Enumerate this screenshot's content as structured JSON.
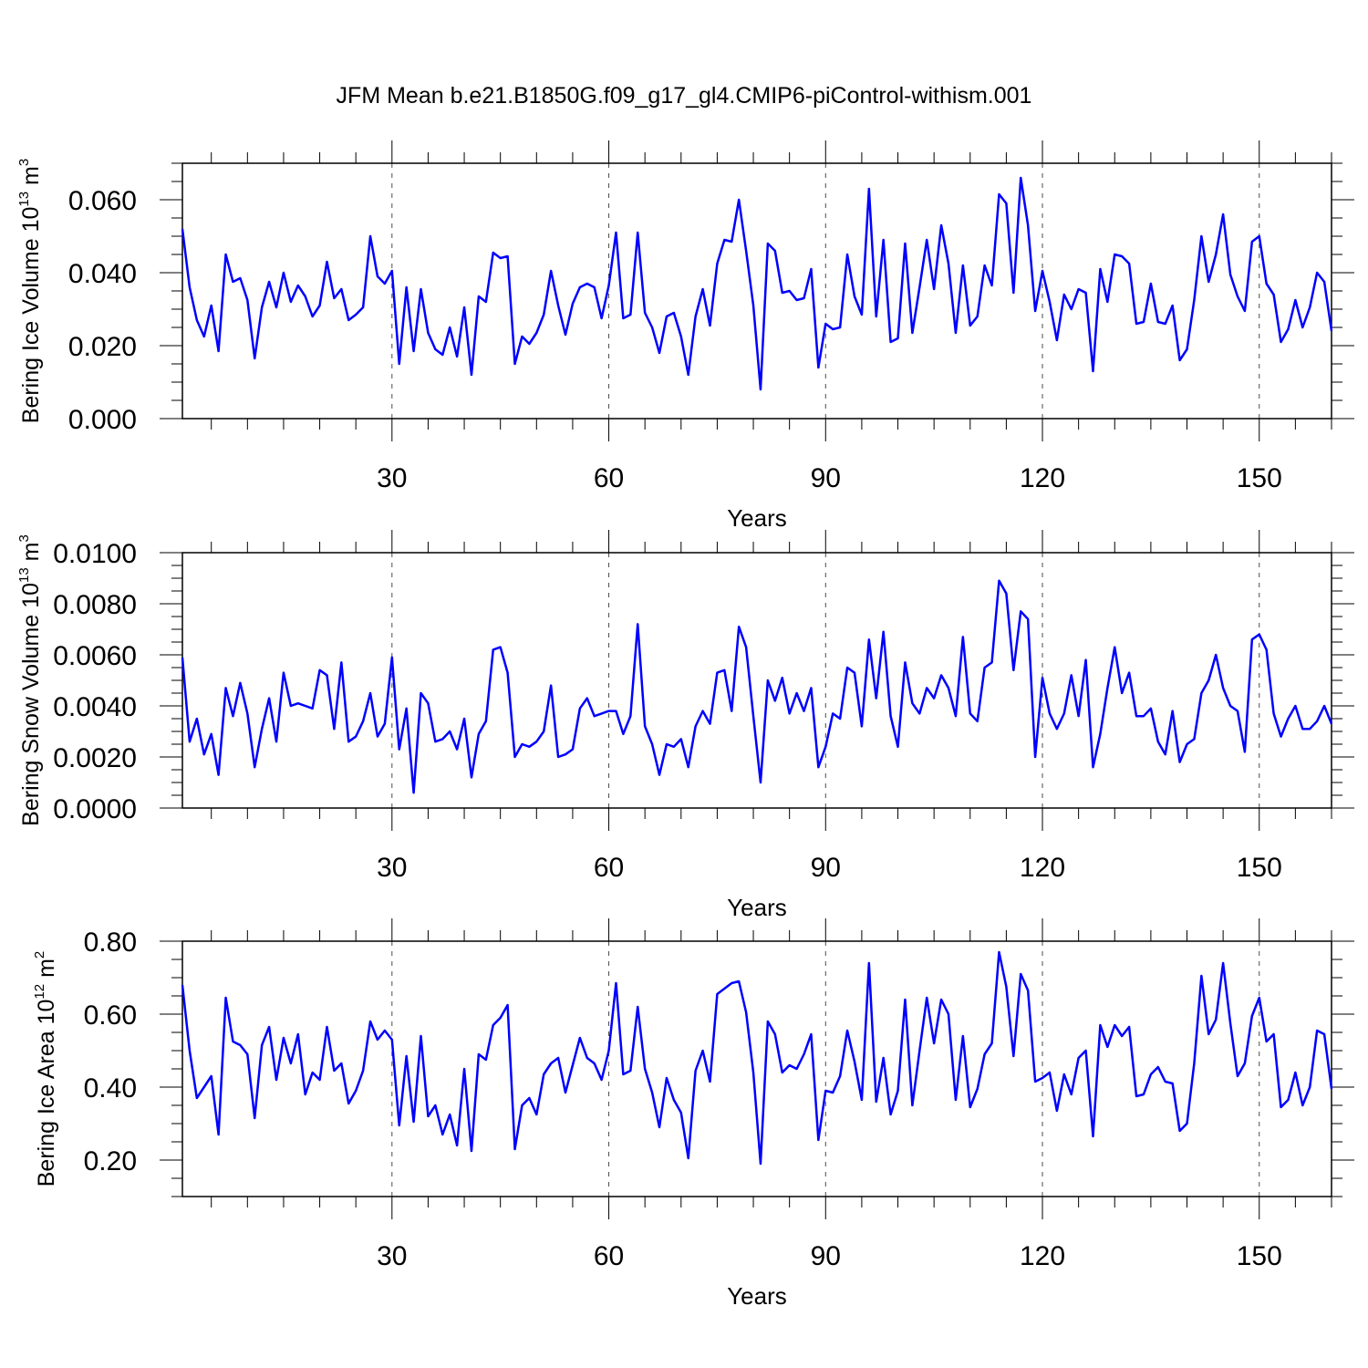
{
  "title": "JFM Mean b.e21.B1850G.f09_g17_gl4.CMIP6-piControl-withism.001",
  "chart_data": [
    {
      "type": "line",
      "title": "JFM Mean b.e21.B1850G.f09_g17_gl4.CMIP6-piControl-withism.001",
      "xlabel": "Years",
      "ylabel": {
        "text": "Bering Ice Volume 10",
        "exp": "13",
        "unit": " m",
        "unit_exp": "3"
      },
      "xlim": [
        1,
        160
      ],
      "ylim": [
        0.0,
        0.07
      ],
      "xticks": [
        30,
        60,
        90,
        120,
        150
      ],
      "xtick_labels": [
        "30",
        "60",
        "90",
        "120",
        "150"
      ],
      "yticks": [
        0.0,
        0.02,
        0.04,
        0.06
      ],
      "ytick_labels": [
        "0.000",
        "0.020",
        "0.040",
        "0.060"
      ],
      "yminor": 0.005,
      "line_color": "#0000ff",
      "grid": "dashed vertical at major x ticks",
      "series": [
        {
          "name": "Bering Ice Volume",
          "values": [
            0.052,
            0.036,
            0.027,
            0.0225,
            0.031,
            0.0185,
            0.045,
            0.0375,
            0.0385,
            0.0325,
            0.0165,
            0.0305,
            0.0375,
            0.0305,
            0.04,
            0.032,
            0.0365,
            0.0335,
            0.028,
            0.031,
            0.043,
            0.033,
            0.0355,
            0.027,
            0.0285,
            0.0305,
            0.05,
            0.039,
            0.037,
            0.0405,
            0.015,
            0.036,
            0.0185,
            0.0355,
            0.0235,
            0.019,
            0.0175,
            0.025,
            0.017,
            0.0305,
            0.012,
            0.0335,
            0.032,
            0.0455,
            0.044,
            0.0445,
            0.015,
            0.0225,
            0.0205,
            0.0235,
            0.0285,
            0.0405,
            0.031,
            0.023,
            0.0315,
            0.036,
            0.037,
            0.036,
            0.0275,
            0.0365,
            0.051,
            0.0275,
            0.0285,
            0.051,
            0.029,
            0.025,
            0.018,
            0.028,
            0.029,
            0.0225,
            0.012,
            0.028,
            0.0355,
            0.0255,
            0.0425,
            0.049,
            0.0485,
            0.06,
            0.046,
            0.031,
            0.008,
            0.048,
            0.046,
            0.0345,
            0.035,
            0.0325,
            0.033,
            0.041,
            0.014,
            0.026,
            0.0245,
            0.025,
            0.045,
            0.0335,
            0.0285,
            0.063,
            0.028,
            0.049,
            0.021,
            0.022,
            0.048,
            0.0235,
            0.036,
            0.049,
            0.0355,
            0.053,
            0.0425,
            0.0235,
            0.042,
            0.0255,
            0.028,
            0.042,
            0.0365,
            0.0615,
            0.059,
            0.0345,
            0.066,
            0.053,
            0.0295,
            0.0405,
            0.032,
            0.0215,
            0.034,
            0.03,
            0.0355,
            0.0345,
            0.013,
            0.041,
            0.032,
            0.045,
            0.0445,
            0.0425,
            0.026,
            0.0265,
            0.037,
            0.0265,
            0.026,
            0.031,
            0.016,
            0.019,
            0.0325,
            0.05,
            0.0375,
            0.045,
            0.056,
            0.0395,
            0.0335,
            0.0295,
            0.0485,
            0.05,
            0.037,
            0.034,
            0.021,
            0.0245,
            0.0325,
            0.025,
            0.0305,
            0.04,
            0.0375,
            0.024
          ]
        }
      ]
    },
    {
      "type": "line",
      "xlabel": "Years",
      "ylabel": {
        "text": "Bering Snow Volume 10",
        "exp": "13",
        "unit": " m",
        "unit_exp": "3"
      },
      "xlim": [
        1,
        160
      ],
      "ylim": [
        0.0,
        0.01
      ],
      "xticks": [
        30,
        60,
        90,
        120,
        150
      ],
      "xtick_labels": [
        "30",
        "60",
        "90",
        "120",
        "150"
      ],
      "yticks": [
        0.0,
        0.002,
        0.004,
        0.006,
        0.008,
        0.01
      ],
      "ytick_labels": [
        "0.0000",
        "0.0020",
        "0.0040",
        "0.0060",
        "0.0080",
        "0.0100"
      ],
      "yminor": 0.0005,
      "line_color": "#0000ff",
      "grid": "dashed vertical at major x ticks",
      "series": [
        {
          "name": "Bering Snow Volume",
          "values": [
            0.0059,
            0.0026,
            0.0035,
            0.0021,
            0.0029,
            0.0013,
            0.0047,
            0.0036,
            0.0049,
            0.0037,
            0.0016,
            0.0031,
            0.0043,
            0.0026,
            0.0053,
            0.004,
            0.0041,
            0.004,
            0.0039,
            0.0054,
            0.0052,
            0.0031,
            0.0057,
            0.0026,
            0.0028,
            0.0034,
            0.0045,
            0.0028,
            0.0033,
            0.0059,
            0.0023,
            0.0039,
            0.0006,
            0.0045,
            0.0041,
            0.0026,
            0.0027,
            0.003,
            0.0023,
            0.0035,
            0.0012,
            0.0029,
            0.0034,
            0.0062,
            0.0063,
            0.0053,
            0.002,
            0.0025,
            0.0024,
            0.0026,
            0.003,
            0.0048,
            0.002,
            0.0021,
            0.0023,
            0.0039,
            0.0043,
            0.0036,
            0.0037,
            0.0038,
            0.0038,
            0.0029,
            0.0036,
            0.0072,
            0.0032,
            0.0025,
            0.0013,
            0.0025,
            0.0024,
            0.0027,
            0.0016,
            0.0032,
            0.0038,
            0.0033,
            0.0053,
            0.0054,
            0.0038,
            0.0071,
            0.0063,
            0.0036,
            0.001,
            0.005,
            0.0042,
            0.0051,
            0.0037,
            0.0045,
            0.0038,
            0.0047,
            0.0016,
            0.0024,
            0.0037,
            0.0035,
            0.0055,
            0.0053,
            0.0032,
            0.0066,
            0.0043,
            0.0069,
            0.0036,
            0.0024,
            0.0057,
            0.0041,
            0.0037,
            0.0047,
            0.0043,
            0.0052,
            0.0047,
            0.0036,
            0.0067,
            0.0037,
            0.0034,
            0.0055,
            0.0057,
            0.0089,
            0.0084,
            0.0054,
            0.0077,
            0.0074,
            0.002,
            0.0051,
            0.0037,
            0.0031,
            0.0037,
            0.0052,
            0.0036,
            0.0058,
            0.0016,
            0.0029,
            0.0047,
            0.0063,
            0.0045,
            0.0053,
            0.0036,
            0.0036,
            0.0039,
            0.0026,
            0.0021,
            0.0038,
            0.0018,
            0.0025,
            0.0027,
            0.0045,
            0.005,
            0.006,
            0.0047,
            0.004,
            0.0038,
            0.0022,
            0.0066,
            0.0068,
            0.0062,
            0.0037,
            0.0028,
            0.0035,
            0.004,
            0.0031,
            0.0031,
            0.0034,
            0.004,
            0.0033
          ]
        }
      ]
    },
    {
      "type": "line",
      "xlabel": "Years",
      "ylabel": {
        "text": "Bering Ice Area 10",
        "exp": "12",
        "unit": " m",
        "unit_exp": "2"
      },
      "xlim": [
        1,
        160
      ],
      "ylim": [
        0.1,
        0.8
      ],
      "xticks": [
        30,
        60,
        90,
        120,
        150
      ],
      "xtick_labels": [
        "30",
        "60",
        "90",
        "120",
        "150"
      ],
      "yticks": [
        0.2,
        0.4,
        0.6,
        0.8
      ],
      "ytick_labels": [
        "0.20",
        "0.40",
        "0.60",
        "0.80"
      ],
      "yminor": 0.05,
      "line_color": "#0000ff",
      "grid": "dashed vertical at major x ticks",
      "series": [
        {
          "name": "Bering Ice Area",
          "values": [
            0.68,
            0.5,
            0.37,
            0.4,
            0.43,
            0.27,
            0.645,
            0.525,
            0.515,
            0.49,
            0.315,
            0.515,
            0.565,
            0.42,
            0.535,
            0.465,
            0.545,
            0.38,
            0.44,
            0.42,
            0.565,
            0.445,
            0.465,
            0.355,
            0.39,
            0.445,
            0.58,
            0.53,
            0.555,
            0.53,
            0.295,
            0.485,
            0.305,
            0.54,
            0.32,
            0.35,
            0.27,
            0.325,
            0.24,
            0.45,
            0.225,
            0.49,
            0.475,
            0.57,
            0.59,
            0.625,
            0.23,
            0.35,
            0.37,
            0.325,
            0.435,
            0.465,
            0.48,
            0.385,
            0.46,
            0.535,
            0.48,
            0.465,
            0.42,
            0.5,
            0.685,
            0.435,
            0.445,
            0.62,
            0.45,
            0.385,
            0.29,
            0.425,
            0.365,
            0.33,
            0.205,
            0.445,
            0.5,
            0.415,
            0.655,
            0.67,
            0.685,
            0.69,
            0.605,
            0.44,
            0.19,
            0.58,
            0.545,
            0.44,
            0.46,
            0.45,
            0.49,
            0.545,
            0.255,
            0.39,
            0.385,
            0.43,
            0.555,
            0.47,
            0.365,
            0.74,
            0.36,
            0.48,
            0.325,
            0.39,
            0.64,
            0.35,
            0.5,
            0.645,
            0.52,
            0.64,
            0.6,
            0.365,
            0.54,
            0.345,
            0.395,
            0.49,
            0.52,
            0.77,
            0.675,
            0.485,
            0.71,
            0.665,
            0.415,
            0.425,
            0.44,
            0.335,
            0.435,
            0.38,
            0.48,
            0.5,
            0.265,
            0.57,
            0.51,
            0.57,
            0.54,
            0.565,
            0.375,
            0.38,
            0.435,
            0.455,
            0.415,
            0.41,
            0.28,
            0.3,
            0.465,
            0.705,
            0.545,
            0.585,
            0.74,
            0.575,
            0.43,
            0.465,
            0.595,
            0.645,
            0.525,
            0.545,
            0.345,
            0.365,
            0.44,
            0.35,
            0.4,
            0.555,
            0.545,
            0.395
          ]
        }
      ]
    }
  ]
}
